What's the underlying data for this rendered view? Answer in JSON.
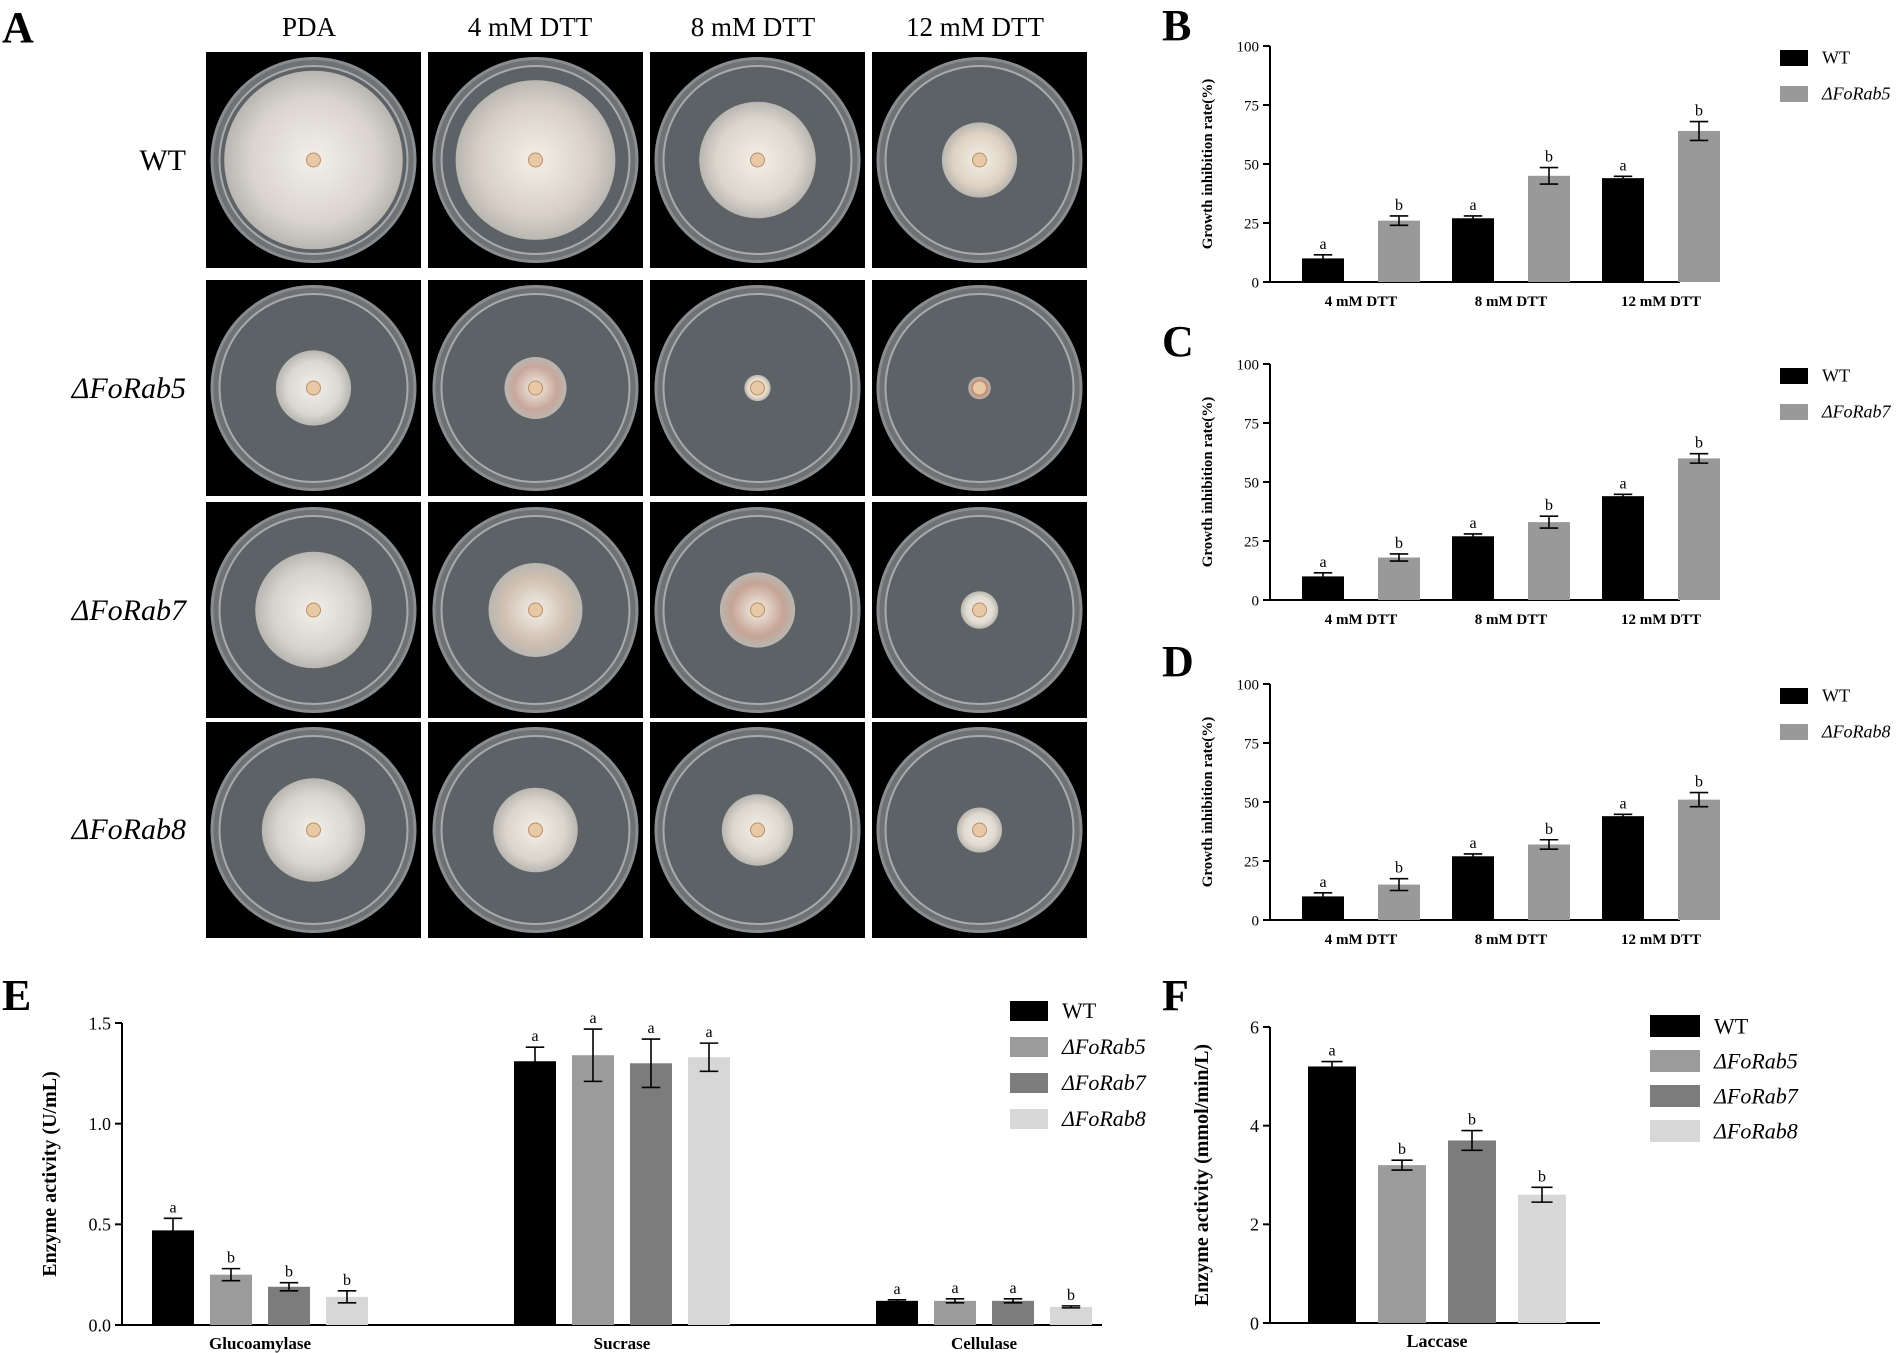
{
  "panels": {
    "A": "A",
    "B": "B",
    "C": "C",
    "D": "D",
    "E": "E",
    "F": "F"
  },
  "plates": {
    "columns": [
      "PDA",
      "4 mM DTT",
      "8 mM DTT",
      "12 mM DTT"
    ],
    "rows": [
      "WT",
      "ΔFoRab5",
      "ΔFoRab7",
      "ΔFoRab8"
    ]
  },
  "colors": {
    "WT": "#000000",
    "FoRab5": "#9b9b9b",
    "FoRab7": "#7c7c7c",
    "FoRab8": "#d7d7d7",
    "mutant_BCD": "#999999",
    "plate_bg": "#000000"
  },
  "chart_data": [
    {
      "id": "B",
      "type": "bar",
      "ylabel": "Growth inhibition rate(%)",
      "ylim": [
        0,
        100
      ],
      "yticks": [
        "0",
        "25",
        "50",
        "75",
        "100"
      ],
      "categories": [
        "4 mM DTT",
        "8 mM DTT",
        "12 mM DTT"
      ],
      "series": [
        {
          "name": "WT",
          "values": [
            10,
            27,
            44
          ],
          "errors": [
            1.5,
            1,
            0.8
          ],
          "letters": [
            "a",
            "a",
            "a"
          ]
        },
        {
          "name": "ΔFoRab5",
          "values": [
            26,
            45,
            64
          ],
          "errors": [
            2,
            3.5,
            4
          ],
          "letters": [
            "b",
            "b",
            "b"
          ]
        }
      ],
      "legend": "top-right"
    },
    {
      "id": "C",
      "type": "bar",
      "ylabel": "Growth inhibition rate(%)",
      "ylim": [
        0,
        100
      ],
      "yticks": [
        "0",
        "25",
        "50",
        "75",
        "100"
      ],
      "categories": [
        "4 mM DTT",
        "8 mM DTT",
        "12 mM DTT"
      ],
      "series": [
        {
          "name": "WT",
          "values": [
            10,
            27,
            44
          ],
          "errors": [
            1.5,
            1,
            0.8
          ],
          "letters": [
            "a",
            "a",
            "a"
          ]
        },
        {
          "name": "ΔFoRab7",
          "values": [
            18,
            33,
            60
          ],
          "errors": [
            1.5,
            2.5,
            2
          ],
          "letters": [
            "b",
            "b",
            "b"
          ]
        }
      ],
      "legend": "top-right"
    },
    {
      "id": "D",
      "type": "bar",
      "ylabel": "Growth inhibition rate(%)",
      "ylim": [
        0,
        100
      ],
      "yticks": [
        "0",
        "25",
        "50",
        "75",
        "100"
      ],
      "categories": [
        "4 mM DTT",
        "8 mM DTT",
        "12 mM DTT"
      ],
      "series": [
        {
          "name": "WT",
          "values": [
            10,
            27,
            44
          ],
          "errors": [
            1.5,
            1,
            0.8
          ],
          "letters": [
            "a",
            "a",
            "a"
          ]
        },
        {
          "name": "ΔFoRab8",
          "values": [
            15,
            32,
            51
          ],
          "errors": [
            2.5,
            2,
            3
          ],
          "letters": [
            "b",
            "b",
            "b"
          ]
        }
      ],
      "legend": "top-right"
    },
    {
      "id": "E",
      "type": "bar",
      "ylabel": "Enzyme activity (U/mL)",
      "ylim": [
        0,
        1.5
      ],
      "yticks": [
        "0.0",
        "0.5",
        "1.0",
        "1.5"
      ],
      "categories": [
        "Glucoamylase",
        "Sucrase",
        "Cellulase"
      ],
      "series": [
        {
          "name": "WT",
          "values": [
            0.47,
            1.31,
            0.12
          ],
          "errors": [
            0.06,
            0.07,
            0.005
          ],
          "letters": [
            "a",
            "a",
            "a"
          ]
        },
        {
          "name": "ΔFoRab5",
          "values": [
            0.25,
            1.34,
            0.12
          ],
          "errors": [
            0.03,
            0.13,
            0.01
          ],
          "letters": [
            "b",
            "a",
            "a"
          ]
        },
        {
          "name": "ΔFoRab7",
          "values": [
            0.19,
            1.3,
            0.12
          ],
          "errors": [
            0.02,
            0.12,
            0.01
          ],
          "letters": [
            "b",
            "a",
            "a"
          ]
        },
        {
          "name": "ΔFoRab8",
          "values": [
            0.14,
            1.33,
            0.09
          ],
          "errors": [
            0.03,
            0.07,
            0.005
          ],
          "letters": [
            "b",
            "a",
            "b"
          ]
        }
      ],
      "legend": "top-right"
    },
    {
      "id": "F",
      "type": "bar",
      "ylabel": "Enzyme activity (mmol/min/L)",
      "ylim": [
        0,
        6
      ],
      "yticks": [
        "0",
        "2",
        "4",
        "6"
      ],
      "categories": [
        "Laccase"
      ],
      "series": [
        {
          "name": "WT",
          "values": [
            5.2
          ],
          "errors": [
            0.1
          ],
          "letters": [
            "a"
          ]
        },
        {
          "name": "ΔFoRab5",
          "values": [
            3.2
          ],
          "errors": [
            0.1
          ],
          "letters": [
            "b"
          ]
        },
        {
          "name": "ΔFoRab7",
          "values": [
            3.7
          ],
          "errors": [
            0.2
          ],
          "letters": [
            "b"
          ]
        },
        {
          "name": "ΔFoRab8",
          "values": [
            2.6
          ],
          "errors": [
            0.15
          ],
          "letters": [
            "b"
          ]
        }
      ],
      "legend": "top-right"
    }
  ]
}
